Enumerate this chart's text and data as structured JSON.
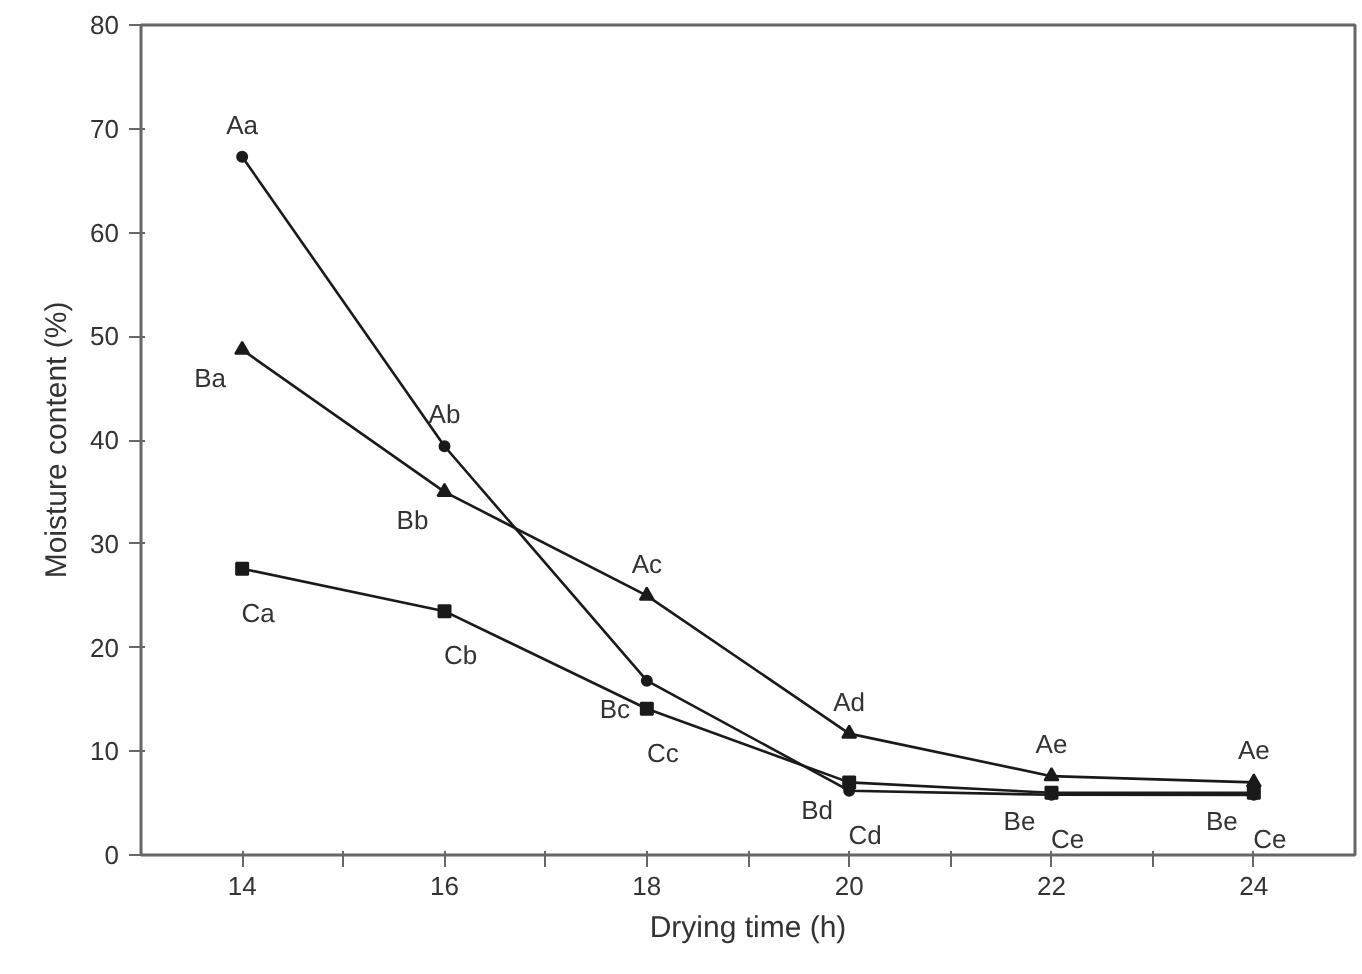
{
  "chart_data": {
    "type": "line",
    "xlabel": "Drying time (h)",
    "ylabel": "Moisture content (%)",
    "x": [
      14,
      16,
      18,
      20,
      22,
      24
    ],
    "series": [
      {
        "color": "#1a1a1a",
        "marker": "circle",
        "values": [
          67.3,
          39.4,
          16.8,
          6.2,
          5.8,
          5.8
        ]
      },
      {
        "color": "#1a1a1a",
        "marker": "triangle",
        "values": [
          48.7,
          35.0,
          25.0,
          11.7,
          7.6,
          7.0
        ]
      },
      {
        "color": "#1a1a1a",
        "marker": "square",
        "values": [
          27.6,
          23.5,
          14.1,
          7.0,
          6.0,
          6.0
        ]
      }
    ],
    "xlim": [
      13,
      25
    ],
    "xticks": [
      14,
      {
        "value": 15,
        "label": null
      },
      16,
      {
        "value": 17,
        "label": null
      },
      18,
      {
        "value": 19,
        "label": null
      },
      20,
      {
        "value": 21,
        "label": null
      },
      22,
      {
        "value": 23,
        "label": null
      },
      24
    ],
    "ylim": [
      0,
      80
    ],
    "yticks": [
      0,
      10,
      20,
      30,
      40,
      50,
      60,
      70,
      80
    ],
    "grid": false,
    "line_style": "solid",
    "annotations": [
      {
        "text": "Aa",
        "x": 14,
        "y": 67.3
      },
      {
        "text": "Ba",
        "x": 14,
        "y": 48.7
      },
      {
        "text": "Ca",
        "x": 14,
        "y": 27.6
      },
      {
        "text": "Ab",
        "x": 16,
        "y": 39.4
      },
      {
        "text": "Bb",
        "x": 16,
        "y": 35.0
      },
      {
        "text": "Cb",
        "x": 16,
        "y": 23.5
      },
      {
        "text": "Ac",
        "x": 18,
        "y": 25.0
      },
      {
        "text": "Bc",
        "x": 18,
        "y": 16.8
      },
      {
        "text": "Cc",
        "x": 18,
        "y": 14.1
      },
      {
        "text": "Ad",
        "x": 20,
        "y": 11.7
      },
      {
        "text": "Bd",
        "x": 20,
        "y": 7.0
      },
      {
        "text": "Cd",
        "x": 20,
        "y": 6.2
      },
      {
        "text": "Ae",
        "x": 22,
        "y": 7.6
      },
      {
        "text": "Be",
        "x": 22,
        "y": 6.0
      },
      {
        "text": "Ce",
        "x": 22,
        "y": 5.8
      },
      {
        "text": "Ae",
        "x": 24,
        "y": 7.0
      },
      {
        "text": "Be",
        "x": 24,
        "y": 6.0
      },
      {
        "text": "Ce",
        "x": 24,
        "y": 5.8
      }
    ]
  }
}
